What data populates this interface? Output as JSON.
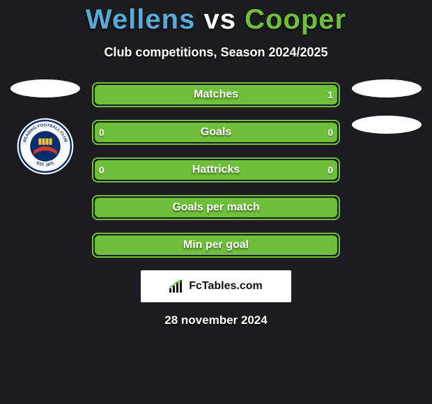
{
  "title": {
    "player1": "Wellens",
    "vs": "vs",
    "player2": "Cooper",
    "color_player1": "#5aa8d6",
    "color_vs": "#ffffff",
    "color_player2": "#6fbf3a"
  },
  "subtitle": "Club competitions, Season 2024/2025",
  "colors": {
    "left_fill": "#3f8bc6",
    "right_fill": "#6fbf3a",
    "background": "#1a1c20",
    "text": "#ffffff"
  },
  "rows": [
    {
      "label": "Matches",
      "left": "",
      "right": "1",
      "left_pct": 0,
      "right_pct": 100
    },
    {
      "label": "Goals",
      "left": "0",
      "right": "0",
      "left_pct": 0,
      "right_pct": 100
    },
    {
      "label": "Hattricks",
      "left": "0",
      "right": "0",
      "left_pct": 0,
      "right_pct": 100
    },
    {
      "label": "Goals per match",
      "left": "",
      "right": "",
      "left_pct": 0,
      "right_pct": 100
    },
    {
      "label": "Min per goal",
      "left": "",
      "right": "",
      "left_pct": 0,
      "right_pct": 100
    }
  ],
  "attribution": "FcTables.com",
  "date": "28 november 2024",
  "badge_text": {
    "top": "READING FOOTBALL CLUB",
    "bottom": "EST. 1871"
  }
}
